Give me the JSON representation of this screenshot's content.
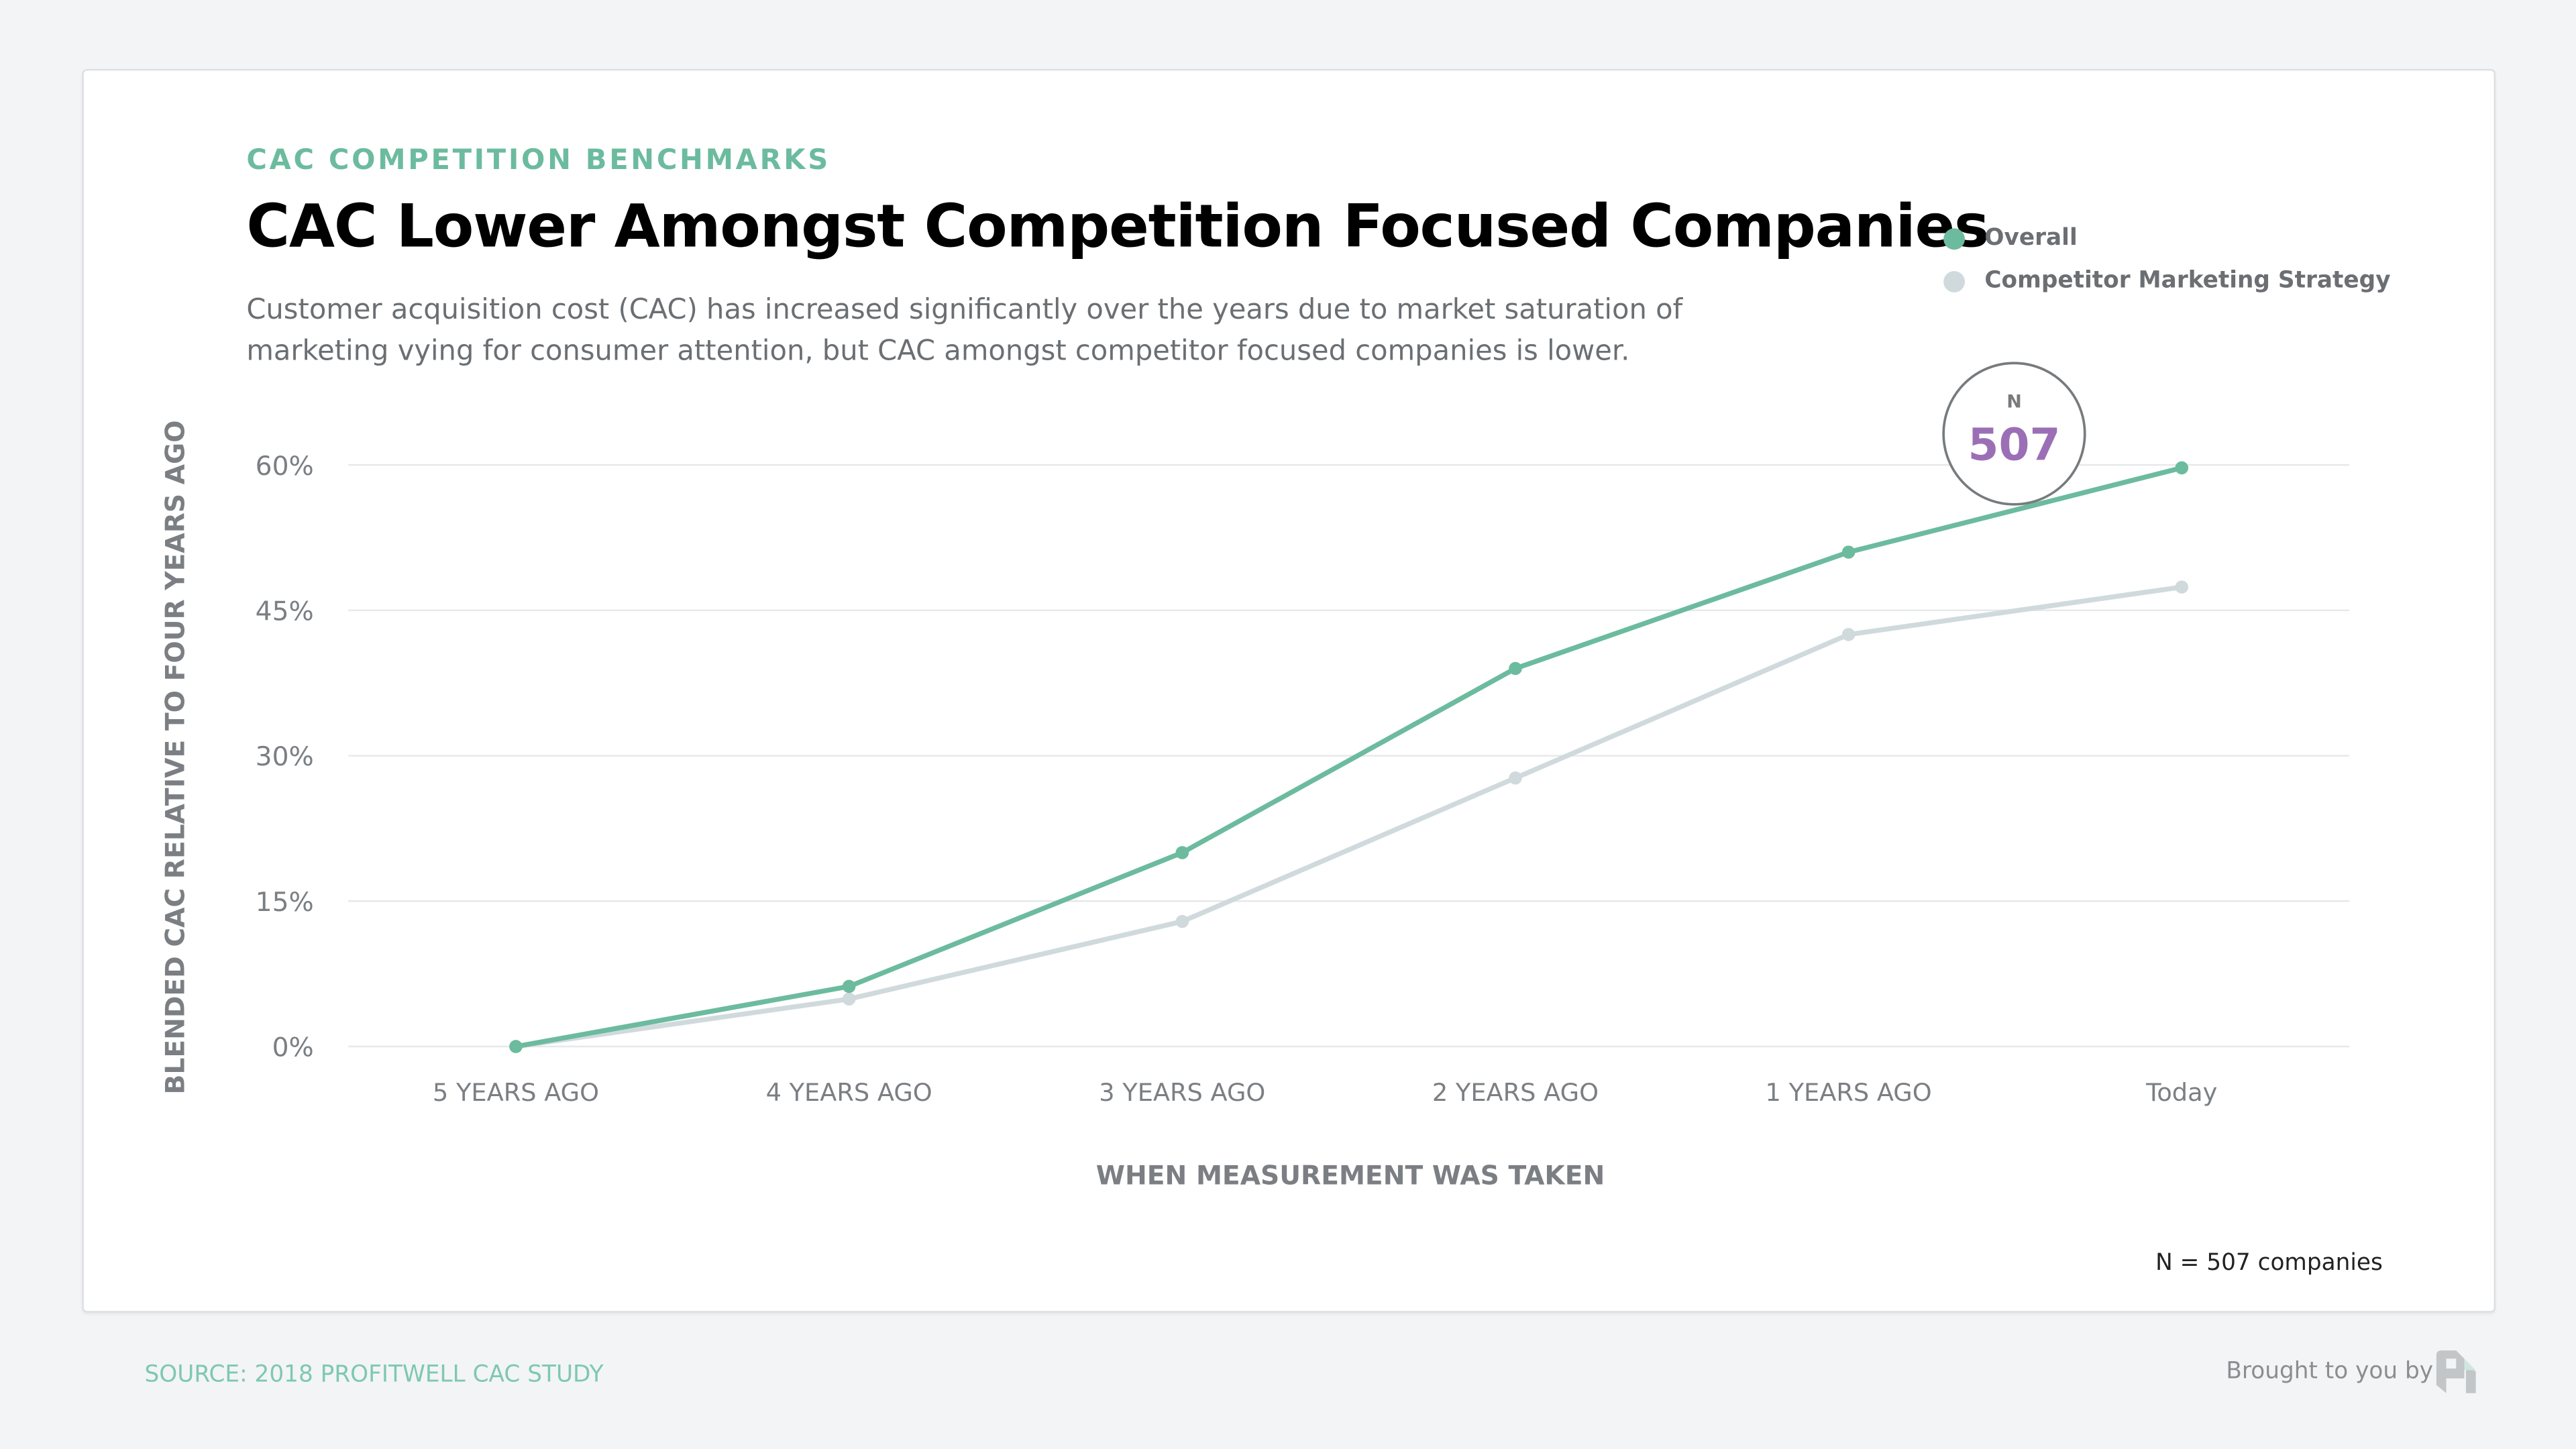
{
  "header": {
    "eyebrow": "CAC COMPETITION BENCHMARKS",
    "title": "CAC Lower Amongst Competition Focused Companies",
    "subtitle": "Customer acquisition cost (CAC) has increased significantly over the years due to market saturation of marketing vying for consumer attention, but CAC amongst competitor focused companies is lower."
  },
  "badge": {
    "label": "N",
    "value": "507",
    "color": "#9b6fb5"
  },
  "footer": {
    "source": "SOURCE: 2018 PROFITWELL CAC STUDY",
    "brought": "Brought to you by",
    "n_note": "N = 507 companies"
  },
  "chart_data": {
    "type": "line",
    "title": "CAC Lower Amongst Competition Focused Companies",
    "xlabel": "WHEN MEASUREMENT WAS TAKEN",
    "ylabel": "BLENDED CAC RELATIVE TO FOUR YEARS AGO",
    "categories": [
      "5 YEARS AGO",
      "4 YEARS AGO",
      "3 YEARS AGO",
      "2 YEARS AGO",
      "1 YEARS AGO",
      "Today"
    ],
    "yticks": [
      0,
      15,
      30,
      45,
      60
    ],
    "ytick_labels": [
      "0%",
      "15%",
      "30%",
      "45%",
      "60%"
    ],
    "ylim": [
      0,
      60
    ],
    "grid": true,
    "legend_position": "top-right",
    "series": [
      {
        "name": "Overall",
        "color": "#6cbb9f",
        "values": [
          0,
          6.2,
          20,
          39,
          51,
          59.7
        ]
      },
      {
        "name": "Competitor Marketing Strategy",
        "color": "#d0dadd",
        "values": [
          0,
          4.9,
          12.9,
          27.7,
          42.5,
          47.4
        ]
      }
    ]
  }
}
